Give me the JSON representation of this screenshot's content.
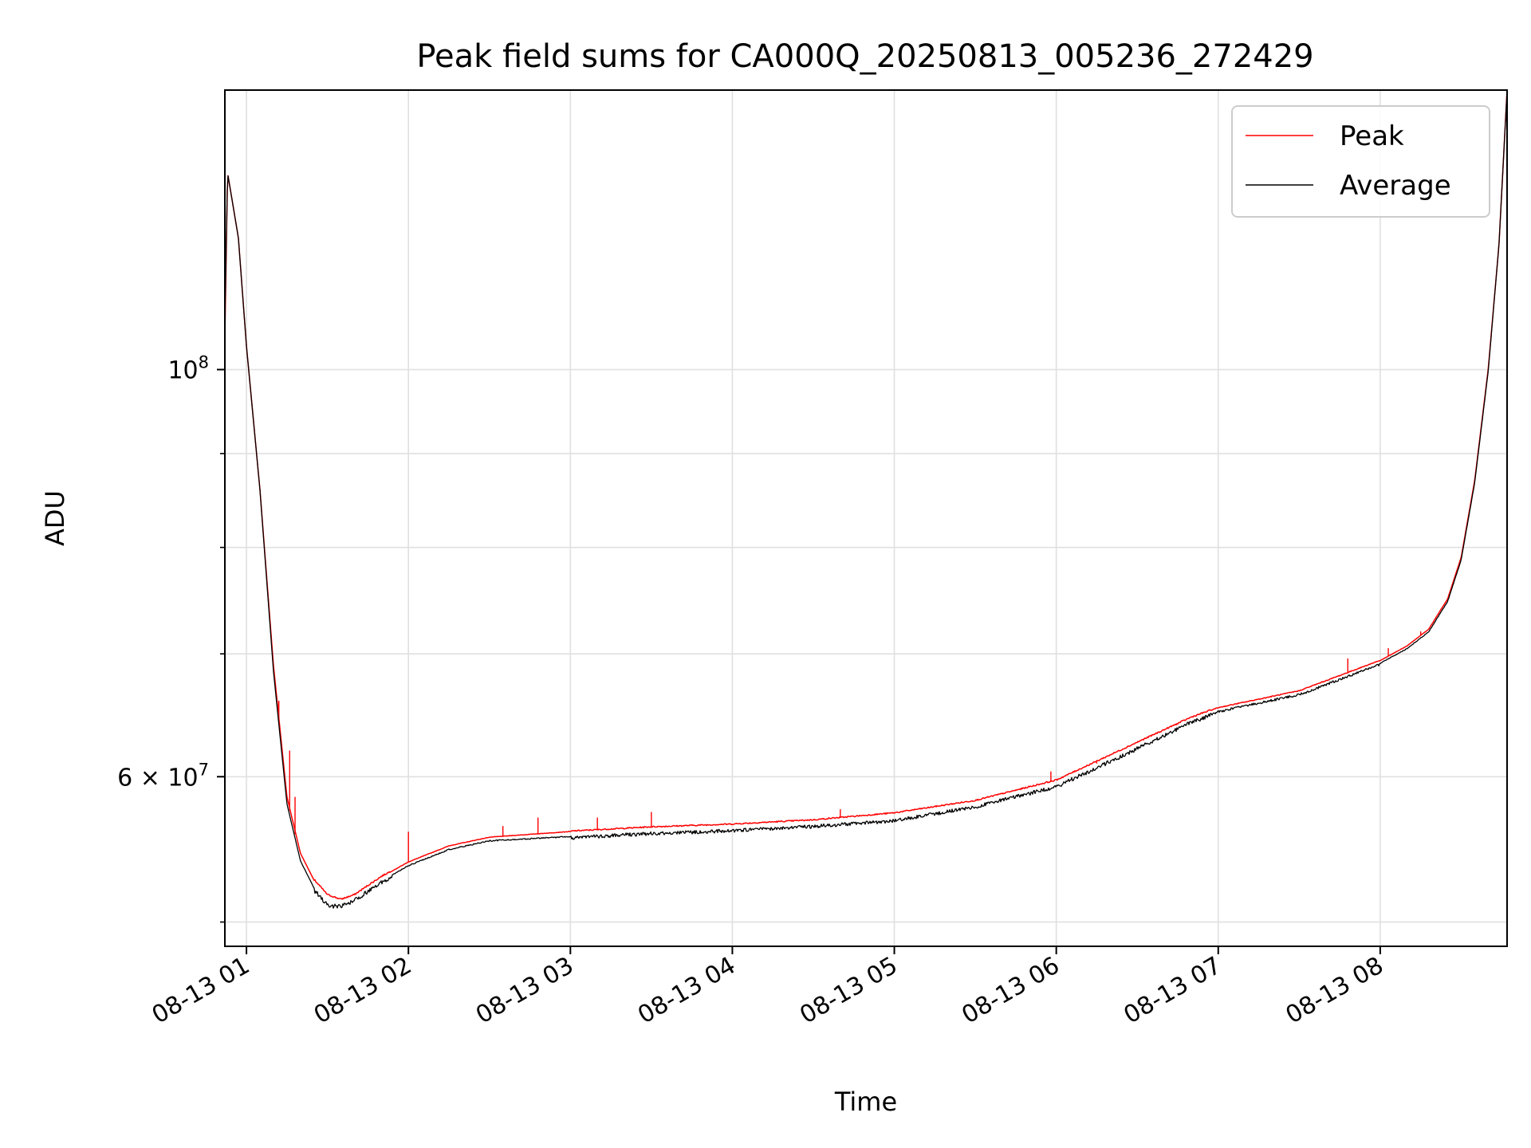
{
  "chart_data": {
    "type": "line",
    "title": "Peak field sums for CA000Q_20250813_005236_272429",
    "xlabel": "Time",
    "ylabel": "ADU",
    "y_scale": "log",
    "grid": true,
    "legend_position": "top-right",
    "xlim": [
      "2025-08-13 00:52",
      "2025-08-13 08:47"
    ],
    "ylim": [
      48500000,
      142000000
    ],
    "x_ticks": [
      {
        "x": "2025-08-13 01:00",
        "label": "08-13 01"
      },
      {
        "x": "2025-08-13 02:00",
        "label": "08-13 02"
      },
      {
        "x": "2025-08-13 03:00",
        "label": "08-13 03"
      },
      {
        "x": "2025-08-13 04:00",
        "label": "08-13 04"
      },
      {
        "x": "2025-08-13 05:00",
        "label": "08-13 05"
      },
      {
        "x": "2025-08-13 06:00",
        "label": "08-13 06"
      },
      {
        "x": "2025-08-13 07:00",
        "label": "08-13 07"
      },
      {
        "x": "2025-08-13 08:00",
        "label": "08-13 08"
      }
    ],
    "y_major_ticks": [
      {
        "y": 100000000,
        "base": "10",
        "exp": "8"
      },
      {
        "y": 60000000,
        "base": "6 × 10",
        "exp": "7"
      }
    ],
    "y_minor_ticks": [
      50000000,
      70000000,
      80000000,
      90000000
    ],
    "series": [
      {
        "name": "Peak",
        "color": "#ff0000",
        "points": [
          [
            "2025-08-13 00:52",
            104000000
          ],
          [
            "2025-08-13 00:53",
            128000000
          ],
          [
            "2025-08-13 00:57",
            118000000
          ],
          [
            "2025-08-13 01:00",
            103000000
          ],
          [
            "2025-08-13 01:05",
            86000000
          ],
          [
            "2025-08-13 01:10",
            69000000
          ],
          [
            "2025-08-13 01:15",
            58500000
          ],
          [
            "2025-08-13 01:20",
            54500000
          ],
          [
            "2025-08-13 01:25",
            52700000
          ],
          [
            "2025-08-13 01:30",
            51700000
          ],
          [
            "2025-08-13 01:35",
            51400000
          ],
          [
            "2025-08-13 01:40",
            51700000
          ],
          [
            "2025-08-13 01:45",
            52300000
          ],
          [
            "2025-08-13 01:50",
            52900000
          ],
          [
            "2025-08-13 02:00",
            53900000
          ],
          [
            "2025-08-13 02:15",
            55000000
          ],
          [
            "2025-08-13 02:30",
            55600000
          ],
          [
            "2025-08-13 03:00",
            56000000
          ],
          [
            "2025-08-13 03:30",
            56300000
          ],
          [
            "2025-08-13 04:00",
            56500000
          ],
          [
            "2025-08-13 04:30",
            56800000
          ],
          [
            "2025-08-13 05:00",
            57300000
          ],
          [
            "2025-08-13 05:30",
            58200000
          ],
          [
            "2025-08-13 06:00",
            59700000
          ],
          [
            "2025-08-13 06:30",
            62600000
          ],
          [
            "2025-08-13 06:50",
            64600000
          ],
          [
            "2025-08-13 07:00",
            65400000
          ],
          [
            "2025-08-13 07:30",
            66800000
          ],
          [
            "2025-08-13 08:00",
            69400000
          ],
          [
            "2025-08-13 08:10",
            70700000
          ],
          [
            "2025-08-13 08:18",
            72200000
          ],
          [
            "2025-08-13 08:25",
            75000000
          ],
          [
            "2025-08-13 08:30",
            79000000
          ],
          [
            "2025-08-13 08:35",
            87000000
          ],
          [
            "2025-08-13 08:40",
            100000000
          ],
          [
            "2025-08-13 08:44",
            117000000
          ],
          [
            "2025-08-13 08:47",
            142000000
          ]
        ],
        "spikes": [
          [
            "2025-08-13 01:12",
            66000000
          ],
          [
            "2025-08-13 01:16",
            62000000
          ],
          [
            "2025-08-13 01:18",
            58500000
          ],
          [
            "2025-08-13 02:00",
            56000000
          ],
          [
            "2025-08-13 02:35",
            56400000
          ],
          [
            "2025-08-13 02:48",
            57000000
          ],
          [
            "2025-08-13 03:10",
            57000000
          ],
          [
            "2025-08-13 03:30",
            57400000
          ],
          [
            "2025-08-13 04:40",
            57600000
          ],
          [
            "2025-08-13 05:58",
            60400000
          ],
          [
            "2025-08-13 06:15",
            61000000
          ],
          [
            "2025-08-13 07:48",
            69600000
          ],
          [
            "2025-08-13 08:03",
            70500000
          ],
          [
            "2025-08-13 08:15",
            72000000
          ]
        ]
      },
      {
        "name": "Average",
        "color": "#000000",
        "points": [
          [
            "2025-08-13 00:52",
            106000000
          ],
          [
            "2025-08-13 00:53",
            128000000
          ],
          [
            "2025-08-13 00:57",
            118000000
          ],
          [
            "2025-08-13 01:00",
            103000000
          ],
          [
            "2025-08-13 01:05",
            86000000
          ],
          [
            "2025-08-13 01:10",
            68500000
          ],
          [
            "2025-08-13 01:15",
            58000000
          ],
          [
            "2025-08-13 01:20",
            54000000
          ],
          [
            "2025-08-13 01:25",
            52200000
          ],
          [
            "2025-08-13 01:30",
            51200000
          ],
          [
            "2025-08-13 01:35",
            51100000
          ],
          [
            "2025-08-13 01:40",
            51500000
          ],
          [
            "2025-08-13 01:45",
            52100000
          ],
          [
            "2025-08-13 01:50",
            52700000
          ],
          [
            "2025-08-13 02:00",
            53700000
          ],
          [
            "2025-08-13 02:15",
            54800000
          ],
          [
            "2025-08-13 02:30",
            55400000
          ],
          [
            "2025-08-13 03:00",
            55700000
          ],
          [
            "2025-08-13 03:30",
            56000000
          ],
          [
            "2025-08-13 04:00",
            56200000
          ],
          [
            "2025-08-13 04:30",
            56500000
          ],
          [
            "2025-08-13 05:00",
            56900000
          ],
          [
            "2025-08-13 05:30",
            57900000
          ],
          [
            "2025-08-13 06:00",
            59400000
          ],
          [
            "2025-08-13 06:30",
            62300000
          ],
          [
            "2025-08-13 06:50",
            64400000
          ],
          [
            "2025-08-13 07:00",
            65200000
          ],
          [
            "2025-08-13 07:30",
            66600000
          ],
          [
            "2025-08-13 08:00",
            69200000
          ],
          [
            "2025-08-13 08:10",
            70500000
          ],
          [
            "2025-08-13 08:18",
            72000000
          ],
          [
            "2025-08-13 08:25",
            74800000
          ],
          [
            "2025-08-13 08:30",
            78800000
          ],
          [
            "2025-08-13 08:35",
            86800000
          ],
          [
            "2025-08-13 08:40",
            99800000
          ],
          [
            "2025-08-13 08:44",
            117000000
          ],
          [
            "2025-08-13 08:47",
            142000000
          ]
        ]
      }
    ]
  }
}
